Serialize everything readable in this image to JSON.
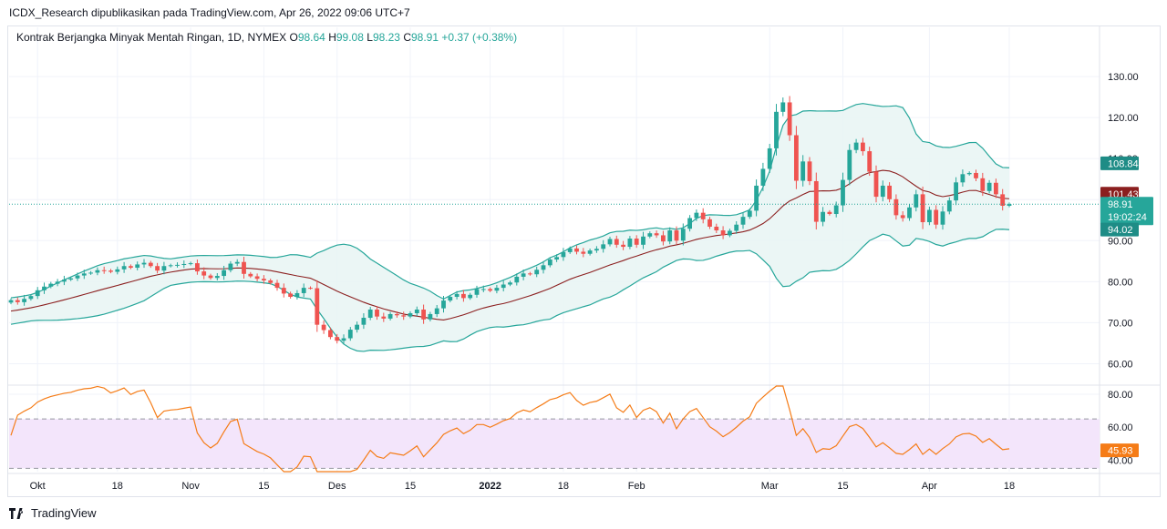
{
  "header": {
    "text": "ICDX_Research dipublikasikan pada TradingView.com, Apr 26, 2022 09:06 UTC+7"
  },
  "legend": {
    "symbol": "Kontrak Berjangka Minyak Mentah Ringan, 1D, NYMEX",
    "o_label": "O",
    "o_value": "98.64",
    "h_label": "H",
    "h_value": "99.08",
    "l_label": "L",
    "l_value": "98.23",
    "c_label": "C",
    "c_value": "98.91",
    "change": "+0.37 (+0.38%)"
  },
  "footer": {
    "brand": "TradingView"
  },
  "colors": {
    "up": "#26a69a",
    "down": "#ef5350",
    "band": "#26a69a",
    "basis": "#8b1f1f",
    "band_fill": "#e8f5f3",
    "rsi_line": "#f57c17",
    "rsi_fill": "#f3e5fb",
    "grid": "#f0f3fa",
    "price_line": "#26a69a"
  },
  "chart_data": {
    "type": "candlestick",
    "price_axis": {
      "ylim": [
        55,
        142
      ],
      "ticks": [
        60,
        70,
        80,
        90,
        100,
        110,
        120,
        130
      ],
      "tick_labels": [
        "60.00",
        "70.00",
        "80.00",
        "90.00",
        "100.00",
        "110.00",
        "120.00",
        "130.00"
      ]
    },
    "rsi_axis": {
      "ylim": [
        33,
        85
      ],
      "ticks": [
        40,
        60,
        80
      ],
      "tick_labels": [
        "40.00",
        "60.00",
        "80.00"
      ],
      "band": [
        35,
        65
      ]
    },
    "x_labels": [
      {
        "i": 4,
        "label": "Okt",
        "bold": false
      },
      {
        "i": 16,
        "label": "18",
        "bold": false
      },
      {
        "i": 27,
        "label": "Nov",
        "bold": false
      },
      {
        "i": 38,
        "label": "15",
        "bold": false
      },
      {
        "i": 49,
        "label": "Des",
        "bold": false
      },
      {
        "i": 60,
        "label": "15",
        "bold": false
      },
      {
        "i": 72,
        "label": "2022",
        "bold": true
      },
      {
        "i": 83,
        "label": "18",
        "bold": false
      },
      {
        "i": 94,
        "label": "Feb",
        "bold": false
      },
      {
        "i": 114,
        "label": "Mar",
        "bold": false
      },
      {
        "i": 125,
        "label": "15",
        "bold": false
      },
      {
        "i": 138,
        "label": "Apr",
        "bold": false
      },
      {
        "i": 150,
        "label": "18",
        "bold": false
      }
    ],
    "closes": [
      75.5,
      75.0,
      75.8,
      76.5,
      77.9,
      78.8,
      79.5,
      80.0,
      80.5,
      80.8,
      81.5,
      82.0,
      82.2,
      82.8,
      82.7,
      82.4,
      83.0,
      83.8,
      83.4,
      84.2,
      84.6,
      83.8,
      82.7,
      83.8,
      84.0,
      84.1,
      84.3,
      84.5,
      82.5,
      81.5,
      80.9,
      81.4,
      82.8,
      84.4,
      84.8,
      81.9,
      81.3,
      80.7,
      80.3,
      79.7,
      78.5,
      77.1,
      76.3,
      77.2,
      78.5,
      78.4,
      69.5,
      68.2,
      66.5,
      65.6,
      66.2,
      68.3,
      69.5,
      71.2,
      73.2,
      71.5,
      71.0,
      72.1,
      71.8,
      71.5,
      72.3,
      73.2,
      70.8,
      72.1,
      73.5,
      75.4,
      76.3,
      77.0,
      76.0,
      76.8,
      78.2,
      78.2,
      77.8,
      78.5,
      79.3,
      79.8,
      81.2,
      82.0,
      81.8,
      82.9,
      84.0,
      85.4,
      86.0,
      87.2,
      88.1,
      87.3,
      86.8,
      87.6,
      88.0,
      89.1,
      90.4,
      89.0,
      88.5,
      90.5,
      89.0,
      91.0,
      91.8,
      91.3,
      89.8,
      92.5,
      90.0,
      92.9,
      95.5,
      96.8,
      95.2,
      93.4,
      92.5,
      91.3,
      92.4,
      93.9,
      95.8,
      97.3,
      103.4,
      107.5,
      112.5,
      121.4,
      123.7,
      115.7,
      104.6,
      109.3,
      104.5,
      94.6,
      97.0,
      96.5,
      98.6,
      104.8,
      112.1,
      113.9,
      111.8,
      106.8,
      100.7,
      103.4,
      100.1,
      96.2,
      95.5,
      98.1,
      101.3,
      94.5,
      97.5,
      93.9,
      97.1,
      99.8,
      104.2,
      106.2,
      106.5,
      105.2,
      102.1,
      104.1,
      101.3,
      98.5,
      98.9
    ]
  },
  "price_scale_labels": {
    "upper_band": "108.84",
    "basis": "101.43",
    "last": "98.91",
    "countdown": "19:02:24",
    "lower_band": "94.02"
  },
  "rsi_scale_label": "45.93"
}
